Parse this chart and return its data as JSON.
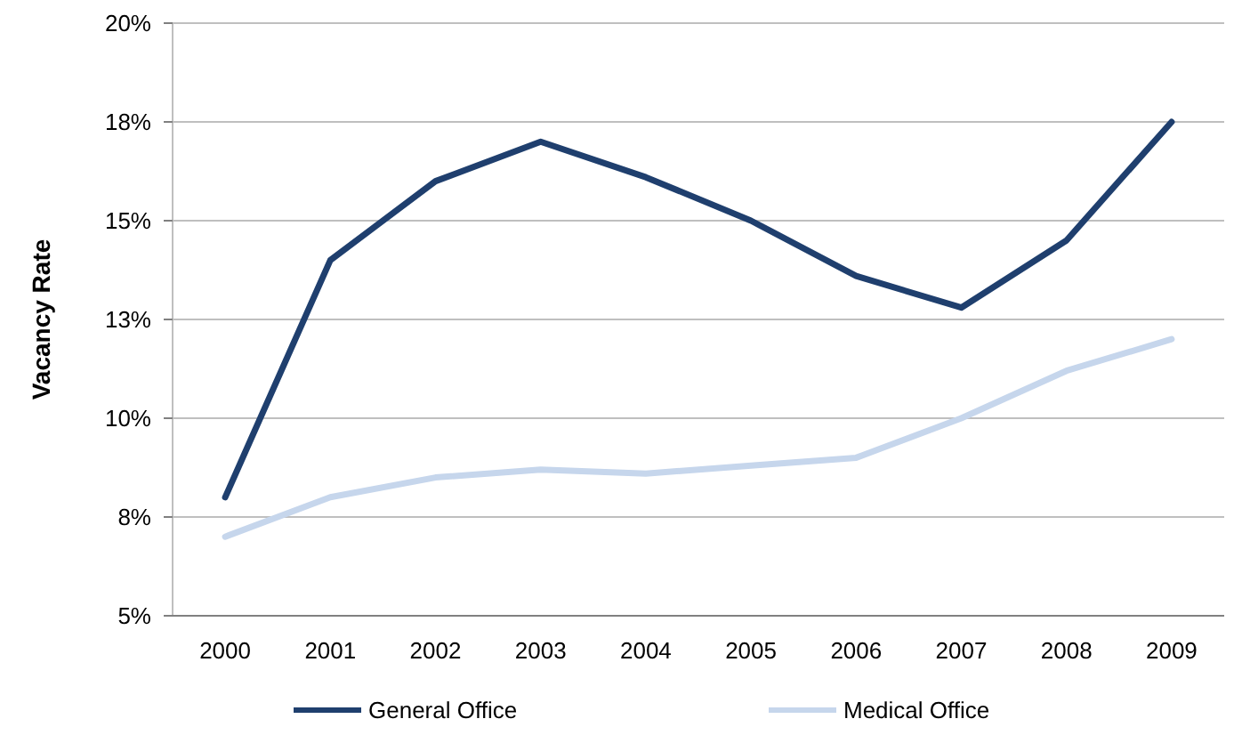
{
  "chart_data": {
    "type": "line",
    "ylabel": "Vacancy Rate",
    "categories": [
      "2000",
      "2001",
      "2002",
      "2003",
      "2004",
      "2005",
      "2006",
      "2007",
      "2008",
      "2009"
    ],
    "series": [
      {
        "name": "General Office",
        "color": "#1f3f6e",
        "values": [
          8.0,
          14.0,
          16.0,
          17.0,
          16.1,
          15.0,
          13.6,
          12.8,
          14.5,
          17.5
        ]
      },
      {
        "name": "Medical Office",
        "color": "#c6d6ec",
        "values": [
          7.0,
          8.0,
          8.5,
          8.7,
          8.6,
          8.8,
          9.0,
          10.0,
          11.2,
          12.0
        ]
      }
    ],
    "ylim": [
      5,
      20
    ],
    "yticks": [
      {
        "value": 5,
        "label": "5%"
      },
      {
        "value": 7.5,
        "label": "8%"
      },
      {
        "value": 10,
        "label": "10%"
      },
      {
        "value": 12.5,
        "label": "13%"
      },
      {
        "value": 15,
        "label": "15%"
      },
      {
        "value": 17.5,
        "label": "18%"
      },
      {
        "value": 20,
        "label": "20%"
      }
    ],
    "grid": "y",
    "legend": "bottom",
    "marker": "none",
    "line_style": "solid"
  }
}
